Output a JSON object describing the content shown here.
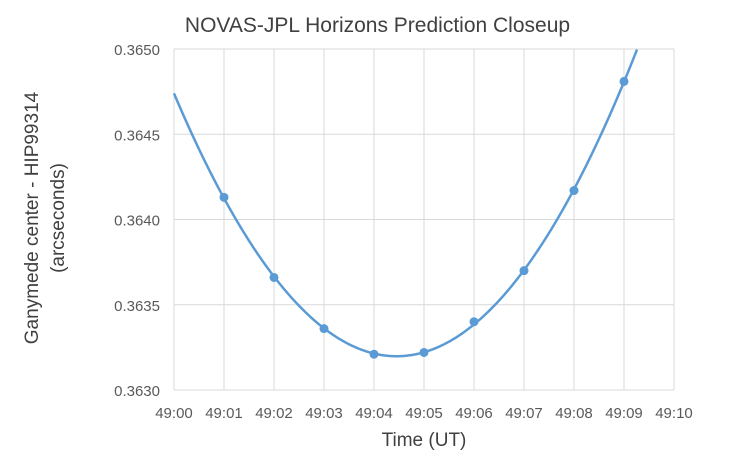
{
  "chart_data": {
    "type": "line",
    "title": "NOVAS-JPL Horizons Prediction Closeup",
    "xlabel": "Time (UT)",
    "ylabel_line1": "Ganymede center - HIP99314",
    "ylabel_line2": "(arcseconds)",
    "x_ticks": [
      "49:00",
      "49:01",
      "49:02",
      "49:03",
      "49:04",
      "49:05",
      "49:06",
      "49:07",
      "49:08",
      "49:09",
      "49:10"
    ],
    "y_ticks": [
      "0.3630",
      "0.3635",
      "0.3640",
      "0.3645",
      "0.3650"
    ],
    "xlim_minutes": [
      0,
      10
    ],
    "ylim": [
      0.363,
      0.365
    ],
    "grid": "vertical and horizontal",
    "series": [
      {
        "color": "#5B9BD5",
        "points": [
          {
            "x": "49:01",
            "y": 0.36413
          },
          {
            "x": "49:02",
            "y": 0.36366
          },
          {
            "x": "49:03",
            "y": 0.36336
          },
          {
            "x": "49:04",
            "y": 0.36321
          },
          {
            "x": "49:05",
            "y": 0.36322
          },
          {
            "x": "49:06",
            "y": 0.3634
          },
          {
            "x": "49:07",
            "y": 0.3637
          },
          {
            "x": "49:08",
            "y": 0.36417
          },
          {
            "x": "49:09",
            "y": 0.36481
          }
        ]
      }
    ]
  }
}
